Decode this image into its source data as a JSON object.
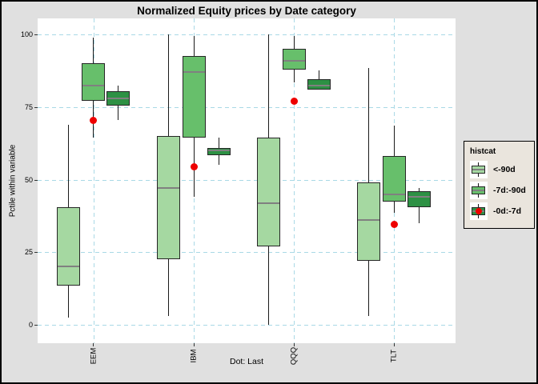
{
  "colors": {
    "outer_bg": "#e0e0e0",
    "panel_bg": "#ffffff",
    "grid": "#a9d9e6",
    "whisker": "#1a1a1a",
    "box_border": "#262626",
    "median": "#808080",
    "dot": "#ee0000",
    "legend_bg": "#eae5dd"
  },
  "chart_data": {
    "type": "boxplot",
    "title": "Normalized Equity prices by Date category",
    "ylabel": "Pctile within variable",
    "xlabel": "",
    "caption": "Dot: Last",
    "categories": [
      "EEM",
      "IBM",
      "QQQ",
      "TLT"
    ],
    "y_axis": {
      "ticks": [
        0,
        25,
        50,
        75,
        100
      ],
      "range": [
        0,
        100
      ],
      "grid": "dashed"
    },
    "legend": {
      "title": "histcat",
      "position": "right",
      "entries": [
        {
          "label": "<-90d",
          "color": "#a5d8a1",
          "dot": false
        },
        {
          "label": "-7d:-90d",
          "color": "#67bf6b",
          "dot": false
        },
        {
          "label": "-0d:-7d",
          "color": "#2d9144",
          "dot": true
        }
      ]
    },
    "series": [
      {
        "name": "<-90d",
        "color": "#a5d8a1",
        "boxes": [
          {
            "category": "EEM",
            "low": 2.5,
            "q1": 13.5,
            "median": 20,
            "q3": 40.5,
            "high": 69
          },
          {
            "category": "IBM",
            "low": 3,
            "q1": 22.5,
            "median": 47,
            "q3": 65,
            "high": 100
          },
          {
            "category": "QQQ",
            "low": 0,
            "q1": 27,
            "median": 42,
            "q3": 64.5,
            "high": 100
          },
          {
            "category": "TLT",
            "low": 3,
            "q1": 22,
            "median": 36,
            "q3": 49,
            "high": 88.5
          }
        ]
      },
      {
        "name": "-7d:-90d",
        "color": "#67bf6b",
        "boxes": [
          {
            "category": "EEM",
            "low": 64.5,
            "q1": 77,
            "median": 82.5,
            "q3": 90,
            "high": 99
          },
          {
            "category": "IBM",
            "low": 44,
            "q1": 64.5,
            "median": 87,
            "q3": 92.5,
            "high": 99.5
          },
          {
            "category": "QQQ",
            "low": 83.5,
            "q1": 88,
            "median": 91,
            "q3": 95,
            "high": 99.5
          },
          {
            "category": "TLT",
            "low": 38.5,
            "q1": 42.5,
            "median": 45,
            "q3": 58,
            "high": 68.5
          }
        ]
      },
      {
        "name": "-0d:-7d",
        "color": "#2d9144",
        "boxes": [
          {
            "category": "EEM",
            "low": 70.5,
            "q1": 75.5,
            "median": 78,
            "q3": 80.5,
            "high": 82.5
          },
          {
            "category": "IBM",
            "low": 55,
            "q1": 58.5,
            "median": 60,
            "q3": 61,
            "high": 64.5
          },
          {
            "category": "QQQ",
            "low": 81,
            "q1": 81,
            "median": 82.5,
            "q3": 84.5,
            "high": 87.5
          },
          {
            "category": "TLT",
            "low": 35,
            "q1": 40.5,
            "median": 44,
            "q3": 46,
            "high": 47
          }
        ]
      }
    ],
    "dots": {
      "name": "Last",
      "color": "#ee0000",
      "values": [
        {
          "category": "EEM",
          "value": 70.5
        },
        {
          "category": "IBM",
          "value": 54.5
        },
        {
          "category": "QQQ",
          "value": 77
        },
        {
          "category": "TLT",
          "value": 34.5
        }
      ]
    }
  }
}
